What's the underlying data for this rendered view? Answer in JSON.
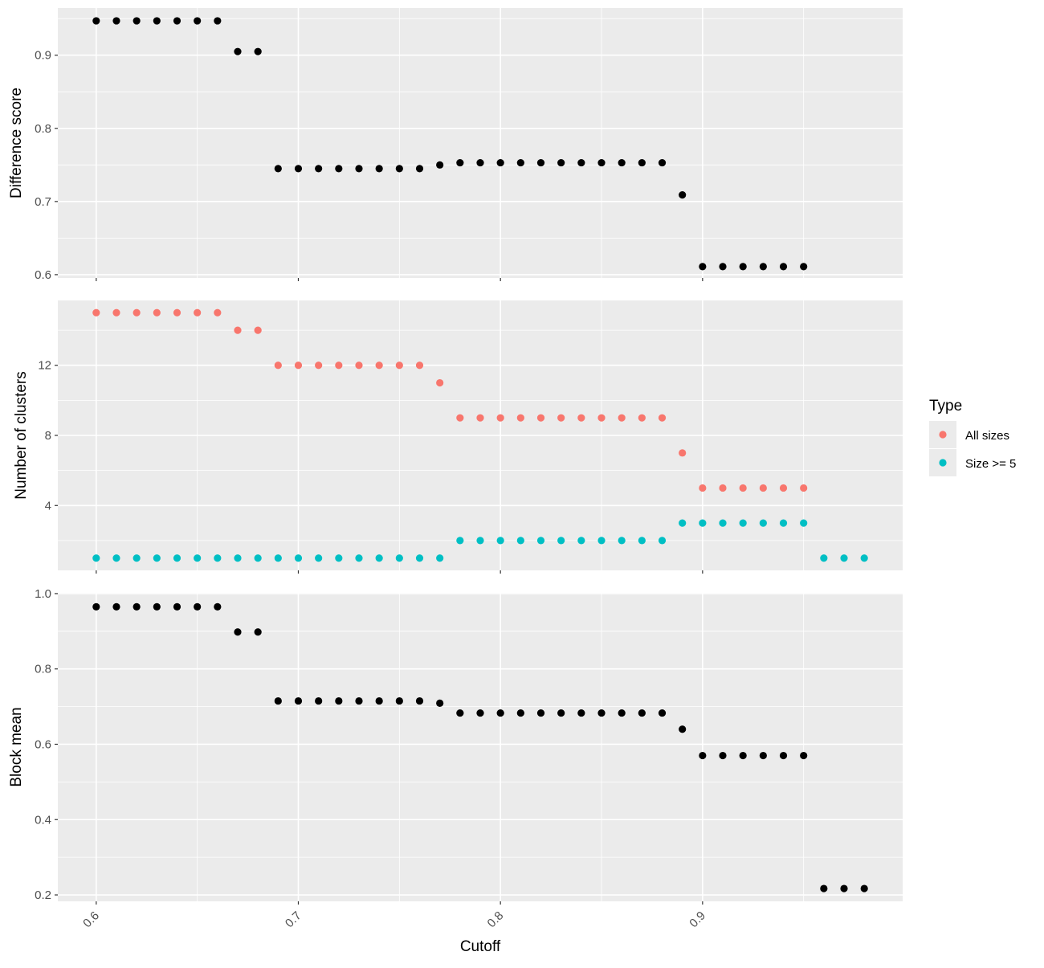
{
  "chart_data": [
    {
      "type": "scatter",
      "ylabel": "Difference score",
      "xlabel": "",
      "xlim": [
        0.581,
        0.999
      ],
      "ylim": [
        0.5955,
        0.9645
      ],
      "x_ticks": [
        0.6,
        0.7,
        0.8,
        0.9
      ],
      "x_tick_labels": [
        "0.6",
        "0.7",
        "0.8",
        "0.9"
      ],
      "y_ticks": [
        0.6,
        0.7,
        0.8,
        0.9
      ],
      "y_tick_labels": [
        "0.6",
        "0.7",
        "0.8",
        "0.9"
      ],
      "grid": true,
      "series": [
        {
          "color": "#000000",
          "x": [
            0.6,
            0.61,
            0.62,
            0.63,
            0.64,
            0.65,
            0.66,
            0.67,
            0.68,
            0.69,
            0.7,
            0.71,
            0.72,
            0.73,
            0.74,
            0.75,
            0.76,
            0.77,
            0.78,
            0.79,
            0.8,
            0.81,
            0.82,
            0.83,
            0.84,
            0.85,
            0.86,
            0.87,
            0.88,
            0.89,
            0.9,
            0.91,
            0.92,
            0.93,
            0.94,
            0.95
          ],
          "y": [
            0.947,
            0.947,
            0.947,
            0.947,
            0.947,
            0.947,
            0.947,
            0.905,
            0.905,
            0.745,
            0.745,
            0.745,
            0.745,
            0.745,
            0.745,
            0.745,
            0.745,
            0.75,
            0.753,
            0.753,
            0.753,
            0.753,
            0.753,
            0.753,
            0.753,
            0.753,
            0.753,
            0.753,
            0.753,
            0.709,
            0.611,
            0.611,
            0.611,
            0.611,
            0.611,
            0.611
          ]
        }
      ]
    },
    {
      "type": "scatter",
      "ylabel": "Number of clusters",
      "xlabel": "",
      "xlim": [
        0.581,
        0.999
      ],
      "ylim": [
        0.3,
        15.7
      ],
      "x_ticks": [
        0.6,
        0.7,
        0.8,
        0.9
      ],
      "x_tick_labels": [
        "0.6",
        "0.7",
        "0.8",
        "0.9"
      ],
      "y_ticks": [
        4,
        8,
        12
      ],
      "y_tick_labels": [
        "4",
        "8",
        "12"
      ],
      "grid": true,
      "legend_position": "right",
      "series": [
        {
          "name": "All sizes",
          "color": "#F8766D",
          "x": [
            0.6,
            0.61,
            0.62,
            0.63,
            0.64,
            0.65,
            0.66,
            0.67,
            0.68,
            0.69,
            0.7,
            0.71,
            0.72,
            0.73,
            0.74,
            0.75,
            0.76,
            0.77,
            0.78,
            0.79,
            0.8,
            0.81,
            0.82,
            0.83,
            0.84,
            0.85,
            0.86,
            0.87,
            0.88,
            0.89,
            0.9,
            0.91,
            0.92,
            0.93,
            0.94,
            0.95
          ],
          "y": [
            15,
            15,
            15,
            15,
            15,
            15,
            15,
            14,
            14,
            12,
            12,
            12,
            12,
            12,
            12,
            12,
            12,
            11,
            9,
            9,
            9,
            9,
            9,
            9,
            9,
            9,
            9,
            9,
            9,
            7,
            5,
            5,
            5,
            5,
            5,
            5
          ]
        },
        {
          "name": "Size >= 5",
          "color": "#00BFC4",
          "x": [
            0.6,
            0.61,
            0.62,
            0.63,
            0.64,
            0.65,
            0.66,
            0.67,
            0.68,
            0.69,
            0.7,
            0.71,
            0.72,
            0.73,
            0.74,
            0.75,
            0.76,
            0.77,
            0.78,
            0.79,
            0.8,
            0.81,
            0.82,
            0.83,
            0.84,
            0.85,
            0.86,
            0.87,
            0.88,
            0.89,
            0.9,
            0.91,
            0.92,
            0.93,
            0.94,
            0.95,
            0.96,
            0.97,
            0.98
          ],
          "y": [
            1,
            1,
            1,
            1,
            1,
            1,
            1,
            1,
            1,
            1,
            1,
            1,
            1,
            1,
            1,
            1,
            1,
            1,
            2,
            2,
            2,
            2,
            2,
            2,
            2,
            2,
            2,
            2,
            2,
            3,
            3,
            3,
            3,
            3,
            3,
            3,
            1,
            1,
            1
          ]
        }
      ]
    },
    {
      "type": "scatter",
      "ylabel": "Block mean",
      "xlabel": "Cutoff",
      "xlim": [
        0.581,
        0.999
      ],
      "ylim": [
        0.183,
        1.002
      ],
      "x_ticks": [
        0.6,
        0.7,
        0.8,
        0.9
      ],
      "x_tick_labels": [
        "0.6",
        "0.7",
        "0.8",
        "0.9"
      ],
      "y_ticks": [
        0.2,
        0.4,
        0.6,
        0.8,
        1.0
      ],
      "y_tick_labels": [
        "0.2",
        "0.4",
        "0.6",
        "0.8",
        "1.0"
      ],
      "grid": true,
      "series": [
        {
          "color": "#000000",
          "x": [
            0.6,
            0.61,
            0.62,
            0.63,
            0.64,
            0.65,
            0.66,
            0.67,
            0.68,
            0.69,
            0.7,
            0.71,
            0.72,
            0.73,
            0.74,
            0.75,
            0.76,
            0.77,
            0.78,
            0.79,
            0.8,
            0.81,
            0.82,
            0.83,
            0.84,
            0.85,
            0.86,
            0.87,
            0.88,
            0.89,
            0.9,
            0.91,
            0.92,
            0.93,
            0.94,
            0.95,
            0.96,
            0.97,
            0.98
          ],
          "y": [
            0.965,
            0.965,
            0.965,
            0.965,
            0.965,
            0.965,
            0.965,
            0.898,
            0.898,
            0.715,
            0.715,
            0.715,
            0.715,
            0.715,
            0.715,
            0.715,
            0.715,
            0.709,
            0.683,
            0.683,
            0.683,
            0.683,
            0.683,
            0.683,
            0.683,
            0.683,
            0.683,
            0.683,
            0.683,
            0.64,
            0.57,
            0.57,
            0.57,
            0.57,
            0.57,
            0.57,
            0.217,
            0.217,
            0.217
          ]
        }
      ]
    }
  ],
  "legend": {
    "title": "Type",
    "items": [
      {
        "label": "All sizes",
        "color": "#F8766D"
      },
      {
        "label": "Size >= 5",
        "color": "#00BFC4"
      }
    ]
  }
}
